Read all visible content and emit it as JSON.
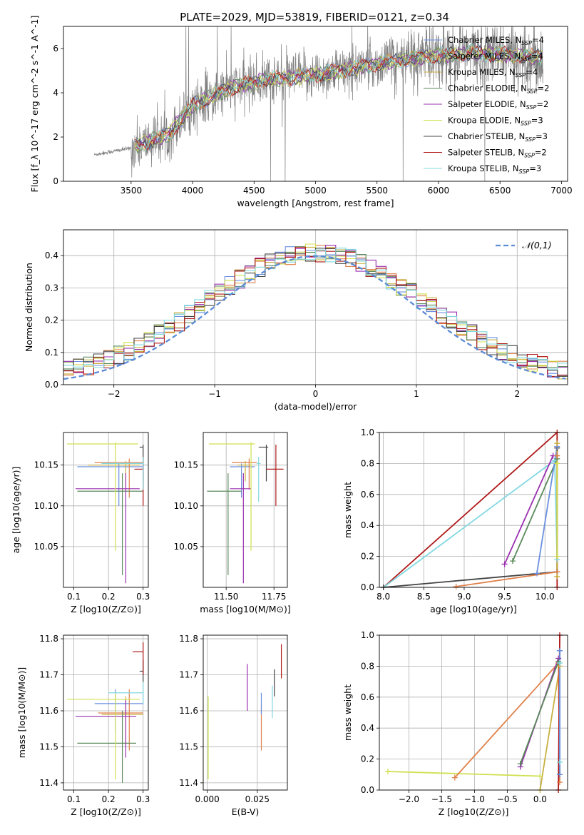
{
  "figure": {
    "title": "PLATE=2029, MJD=53819, FIBERID=0121, z=0.34"
  },
  "legend_entries": [
    {
      "name": "Chabrier MILES, N_SSP=4",
      "color": "#6a8fe0"
    },
    {
      "name": "Salpeter MILES, N_SSP=4",
      "color": "#e0804a"
    },
    {
      "name": "Kroupa MILES, N_SSP=4",
      "color": "#c9b040"
    },
    {
      "name": "Chabrier ELODIE, N_SSP=2",
      "color": "#5a8a5a"
    },
    {
      "name": "Salpeter ELODIE, N_SSP=2",
      "color": "#9a30b0"
    },
    {
      "name": "Kroupa ELODIE, N_SSP=3",
      "color": "#d0e050"
    },
    {
      "name": "Chabrier STELIB, N_SSP=3",
      "color": "#444444"
    },
    {
      "name": "Salpeter STELIB, N_SSP=2",
      "color": "#b01818"
    },
    {
      "name": "Kroupa STELIB, N_SSP=3",
      "color": "#80d8e0"
    }
  ],
  "chart_data": [
    {
      "id": "spectrum",
      "type": "line",
      "title": "PLATE=2029, MJD=53819, FIBERID=0121, z=0.34",
      "xlabel": "wavelength [Angstrom, rest frame]",
      "ylabel": "Flux [f_λ 10^-17 erg cm^-2 s^-1 A^-1]",
      "xlim": [
        2950,
        7050
      ],
      "ylim": [
        0,
        7
      ],
      "xticks": [
        3500,
        4000,
        4500,
        5000,
        5500,
        6000,
        6500,
        7000
      ],
      "yticks": [
        0,
        2,
        4,
        6
      ],
      "grid": false,
      "legend": "top-right",
      "data_range": [
        3200,
        6850
      ],
      "continuum": [
        [
          3200,
          1.2
        ],
        [
          3500,
          1.5
        ],
        [
          3800,
          2.1
        ],
        [
          4000,
          3.4
        ],
        [
          4300,
          4.2
        ],
        [
          4600,
          4.6
        ],
        [
          5000,
          4.8
        ],
        [
          5300,
          5.1
        ],
        [
          5700,
          5.5
        ],
        [
          6000,
          5.7
        ],
        [
          6300,
          5.8
        ],
        [
          6600,
          5.7
        ],
        [
          6850,
          5.6
        ]
      ],
      "model_range": [
        3530,
        6850
      ],
      "series": [
        {
          "name": "data",
          "color": "#808080"
        }
      ]
    },
    {
      "id": "residuals",
      "type": "line",
      "xlabel": "(data-model)/error",
      "ylabel": "Normed distribution",
      "xlim": [
        -2.5,
        2.5
      ],
      "ylim": [
        0,
        0.48
      ],
      "xticks": [
        -2,
        -1,
        0,
        1,
        2
      ],
      "yticks": [
        0.0,
        0.1,
        0.2,
        0.3,
        0.4
      ],
      "grid": true,
      "legend": "top-right",
      "gaussian": {
        "name": "𝒩(0,1)",
        "mean": 0,
        "sigma": 1,
        "color": "#5b8bd6"
      },
      "histogram": {
        "bin_start": -2.5,
        "bin_width": 0.1,
        "n_series": 9
      }
    },
    {
      "id": "age_vs_Z",
      "type": "scatter",
      "xlabel": "Z [log10(Z/Z⊙)]",
      "ylabel": "age  [log10(age/yr)]",
      "xlim": [
        0.07,
        0.315
      ],
      "ylim": [
        10.0,
        10.19
      ],
      "xticks": [
        0.1,
        0.2,
        0.3
      ],
      "yticks": [
        10.05,
        10.1,
        10.15
      ],
      "grid": true,
      "points": [
        {
          "series": "Chabrier MILES",
          "x": 0.23,
          "y": 10.148,
          "xerr": [
            0.11,
            0.3
          ],
          "yerr": [
            10.1,
            10.152
          ]
        },
        {
          "series": "Salpeter MILES",
          "x": 0.26,
          "y": 10.153,
          "xerr": [
            0.16,
            0.3
          ],
          "yerr": [
            10.11,
            10.158
          ]
        },
        {
          "series": "Kroupa MILES",
          "x": 0.25,
          "y": 10.15,
          "xerr": [
            0.14,
            0.29
          ],
          "yerr": [
            10.12,
            10.155
          ]
        },
        {
          "series": "Chabrier ELODIE",
          "x": 0.24,
          "y": 10.118,
          "xerr": [
            0.11,
            0.3
          ],
          "yerr": [
            10.015,
            10.14
          ]
        },
        {
          "series": "Salpeter ELODIE",
          "x": 0.25,
          "y": 10.121,
          "xerr": [
            0.105,
            0.29
          ],
          "yerr": [
            10.005,
            10.14
          ]
        },
        {
          "series": "Kroupa ELODIE",
          "x": 0.22,
          "y": 10.176,
          "xerr": [
            0.08,
            0.285
          ],
          "yerr": [
            10.045,
            10.178
          ]
        },
        {
          "series": "Chabrier STELIB",
          "x": 0.3,
          "y": 10.172,
          "xerr": [
            0.29,
            0.3
          ],
          "yerr": [
            10.13,
            10.175
          ]
        },
        {
          "series": "Salpeter STELIB",
          "x": 0.3,
          "y": 10.145,
          "xerr": [
            0.275,
            0.3
          ],
          "yerr": [
            10.1,
            10.16
          ]
        },
        {
          "series": "Kroupa STELIB",
          "x": 0.3,
          "y": 10.152,
          "xerr": [
            0.18,
            0.3
          ],
          "yerr": [
            10.12,
            10.16
          ]
        }
      ]
    },
    {
      "id": "age_vs_mass",
      "type": "scatter",
      "xlabel": "mass [log10(M/M⊙)]",
      "ylabel": "",
      "xlim": [
        11.38,
        11.82
      ],
      "ylim": [
        10.0,
        10.19
      ],
      "xticks": [
        11.5,
        11.75
      ],
      "yticks": [
        10.05,
        10.1,
        10.15
      ],
      "grid": true,
      "points": [
        {
          "series": "Chabrier MILES",
          "x": 11.58,
          "y": 10.148,
          "xerr": [
            11.52,
            11.65
          ],
          "yerr": [
            10.11,
            10.152
          ]
        },
        {
          "series": "Salpeter MILES",
          "x": 11.62,
          "y": 10.153,
          "xerr": [
            11.53,
            11.66
          ],
          "yerr": [
            10.12,
            10.158
          ]
        },
        {
          "series": "Kroupa MILES",
          "x": 11.6,
          "y": 10.15,
          "xerr": [
            11.56,
            11.63
          ],
          "yerr": [
            10.13,
            10.155
          ]
        },
        {
          "series": "Chabrier ELODIE",
          "x": 11.51,
          "y": 10.118,
          "xerr": [
            11.4,
            11.58
          ],
          "yerr": [
            10.015,
            10.14
          ]
        },
        {
          "series": "Salpeter ELODIE",
          "x": 11.59,
          "y": 10.121,
          "xerr": [
            11.52,
            11.63
          ],
          "yerr": [
            10.005,
            10.14
          ]
        },
        {
          "series": "Kroupa ELODIE",
          "x": 11.63,
          "y": 10.176,
          "xerr": [
            11.41,
            11.65
          ],
          "yerr": [
            10.045,
            10.178
          ]
        },
        {
          "series": "Chabrier STELIB",
          "x": 11.71,
          "y": 10.172,
          "xerr": [
            11.67,
            11.72
          ],
          "yerr": [
            10.13,
            10.175
          ]
        },
        {
          "series": "Salpeter STELIB",
          "x": 11.76,
          "y": 10.145,
          "xerr": [
            11.71,
            11.8
          ],
          "yerr": [
            10.1,
            10.175
          ]
        },
        {
          "series": "Kroupa STELIB",
          "x": 11.67,
          "y": 10.152,
          "xerr": [
            11.66,
            11.68
          ],
          "yerr": [
            10.105,
            10.16
          ]
        }
      ]
    },
    {
      "id": "weight_vs_age",
      "type": "line",
      "xlabel": "age  [log10(age/yr)]",
      "ylabel": "mass weight",
      "xlim": [
        7.95,
        10.28
      ],
      "ylim": [
        0,
        1
      ],
      "xticks": [
        8.0,
        8.5,
        9.0,
        9.5,
        10.0
      ],
      "yticks": [
        0.0,
        0.2,
        0.4,
        0.6,
        0.8,
        1.0
      ],
      "grid": true,
      "series": [
        {
          "name": "Salpeter STELIB",
          "points": [
            [
              8.0,
              0
            ],
            [
              10.15,
              1.0
            ],
            [
              10.15,
              0
            ]
          ]
        },
        {
          "name": "Kroupa STELIB",
          "points": [
            [
              8.0,
              0
            ],
            [
              10.12,
              0.82
            ],
            [
              10.15,
              0.18
            ]
          ]
        },
        {
          "name": "Chabrier STELIB",
          "points": [
            [
              8.0,
              0
            ],
            [
              10.15,
              0.1
            ],
            [
              10.15,
              0.9
            ]
          ]
        },
        {
          "name": "Salpeter ELODIE",
          "points": [
            [
              9.5,
              0.15
            ],
            [
              10.1,
              0.85
            ]
          ]
        },
        {
          "name": "Chabrier ELODIE",
          "points": [
            [
              9.6,
              0.17
            ],
            [
              10.15,
              0.83
            ]
          ]
        },
        {
          "name": "Salpeter MILES",
          "points": [
            [
              8.9,
              0.005
            ],
            [
              10.15,
              0.1
            ],
            [
              10.15,
              0.85
            ]
          ]
        },
        {
          "name": "Chabrier MILES",
          "points": [
            [
              9.9,
              0.09
            ],
            [
              10.15,
              0.91
            ]
          ]
        },
        {
          "name": "Kroupa MILES",
          "points": [
            [
              10.15,
              0.07
            ],
            [
              10.15,
              0.93
            ]
          ]
        },
        {
          "name": "Kroupa ELODIE",
          "points": [
            [
              10.15,
              0.2
            ],
            [
              10.15,
              0.8
            ]
          ]
        }
      ]
    },
    {
      "id": "mass_vs_Z",
      "type": "scatter",
      "xlabel": "Z [log10(Z/Z⊙)]",
      "ylabel": "mass [log10(M/M⊙)]",
      "xlim": [
        0.07,
        0.315
      ],
      "ylim": [
        11.38,
        11.81
      ],
      "xticks": [
        0.1,
        0.2,
        0.3
      ],
      "yticks": [
        11.4,
        11.5,
        11.6,
        11.7,
        11.8
      ],
      "grid": true,
      "points": [
        {
          "series": "Chabrier MILES",
          "x": 0.22,
          "y": 11.62,
          "xerr": [
            0.16,
            0.3
          ],
          "yerr": [
            11.54,
            11.66
          ]
        },
        {
          "series": "Salpeter MILES",
          "x": 0.26,
          "y": 11.594,
          "xerr": [
            0.17,
            0.3
          ],
          "yerr": [
            11.49,
            11.66
          ]
        },
        {
          "series": "Kroupa MILES",
          "x": 0.25,
          "y": 11.59,
          "xerr": [
            0.18,
            0.3
          ],
          "yerr": [
            11.5,
            11.64
          ]
        },
        {
          "series": "Chabrier ELODIE",
          "x": 0.24,
          "y": 11.51,
          "xerr": [
            0.11,
            0.28
          ],
          "yerr": [
            11.4,
            11.6
          ]
        },
        {
          "series": "Salpeter ELODIE",
          "x": 0.25,
          "y": 11.585,
          "xerr": [
            0.105,
            0.28
          ],
          "yerr": [
            11.47,
            11.63
          ]
        },
        {
          "series": "Kroupa ELODIE",
          "x": 0.22,
          "y": 11.632,
          "xerr": [
            0.08,
            0.29
          ],
          "yerr": [
            11.41,
            11.65
          ]
        },
        {
          "series": "Chabrier STELIB",
          "x": 0.3,
          "y": 11.71,
          "xerr": [
            0.29,
            0.3
          ],
          "yerr": [
            11.68,
            11.74
          ]
        },
        {
          "series": "Salpeter STELIB",
          "x": 0.3,
          "y": 11.764,
          "xerr": [
            0.27,
            0.3
          ],
          "yerr": [
            11.7,
            11.79
          ]
        },
        {
          "series": "Kroupa STELIB",
          "x": 0.3,
          "y": 11.65,
          "xerr": [
            0.2,
            0.3
          ],
          "yerr": [
            11.62,
            11.68
          ]
        }
      ]
    },
    {
      "id": "mass_vs_EBV",
      "type": "scatter",
      "xlabel": "E(B-V)",
      "ylabel": "",
      "xlim": [
        -0.002,
        0.04
      ],
      "ylim": [
        11.38,
        11.81
      ],
      "xticks": [
        0.0,
        0.025
      ],
      "yticks": [
        11.4,
        11.5,
        11.6,
        11.7,
        11.8
      ],
      "grid": true,
      "points": [
        {
          "series": "Kroupa ELODIE",
          "x": 0.0005,
          "y": 11.55,
          "yerr": [
            11.41,
            11.64
          ]
        },
        {
          "series": "Salpeter MILES",
          "x": 0.027,
          "y": 11.57,
          "yerr": [
            11.49,
            11.62
          ]
        },
        {
          "series": "Chabrier MILES",
          "x": 0.027,
          "y": 11.62,
          "yerr": [
            11.59,
            11.65
          ]
        },
        {
          "series": "Kroupa STELIB",
          "x": 0.0325,
          "y": 11.63,
          "yerr": [
            11.58,
            11.67
          ]
        },
        {
          "series": "Salpeter ELODIE",
          "x": 0.02,
          "y": 11.66,
          "yerr": [
            11.6,
            11.73
          ]
        },
        {
          "series": "Chabrier STELIB",
          "x": 0.0335,
          "y": 11.68,
          "yerr": [
            11.64,
            11.715
          ]
        },
        {
          "series": "Salpeter STELIB",
          "x": 0.037,
          "y": 11.74,
          "yerr": [
            11.69,
            11.785
          ]
        }
      ]
    },
    {
      "id": "weight_vs_Z",
      "type": "line",
      "xlabel": "Z [log10(Z/Z⊙)]",
      "ylabel": "mass weight",
      "xlim": [
        -2.45,
        0.42
      ],
      "ylim": [
        0,
        1
      ],
      "xticks": [
        -2.0,
        -1.5,
        -1.0,
        -0.5,
        0.0
      ],
      "yticks": [
        0.0,
        0.2,
        0.4,
        0.6,
        0.8,
        1.0
      ],
      "grid": true,
      "series": [
        {
          "name": "Kroupa ELODIE",
          "points": [
            [
              -2.32,
              0.12
            ],
            [
              0.0,
              0.09
            ]
          ]
        },
        {
          "name": "Kroupa MILES",
          "points": [
            [
              0.0,
              0.0
            ],
            [
              0.3,
              0.8
            ]
          ]
        },
        {
          "name": "Salpeter MILES",
          "points": [
            [
              -1.3,
              0.08
            ],
            [
              0.28,
              0.82
            ],
            [
              0.3,
              0.05
            ]
          ]
        },
        {
          "name": "Salpeter ELODIE",
          "points": [
            [
              -0.3,
              0.15
            ],
            [
              0.28,
              0.85
            ]
          ]
        },
        {
          "name": "Chabrier ELODIE",
          "points": [
            [
              -0.3,
              0.17
            ],
            [
              0.28,
              0.83
            ]
          ]
        },
        {
          "name": "Salpeter STELIB",
          "points": [
            [
              0.28,
              0.0
            ],
            [
              0.3,
              1.0
            ]
          ]
        },
        {
          "name": "Chabrier STELIB",
          "points": [
            [
              0.3,
              0.1
            ],
            [
              0.3,
              0.9
            ]
          ]
        },
        {
          "name": "Kroupa STELIB",
          "points": [
            [
              0.3,
              0.18
            ],
            [
              0.3,
              0.82
            ]
          ]
        },
        {
          "name": "Chabrier MILES",
          "points": [
            [
              0.3,
              0.1
            ],
            [
              0.3,
              0.9
            ]
          ]
        }
      ]
    }
  ]
}
